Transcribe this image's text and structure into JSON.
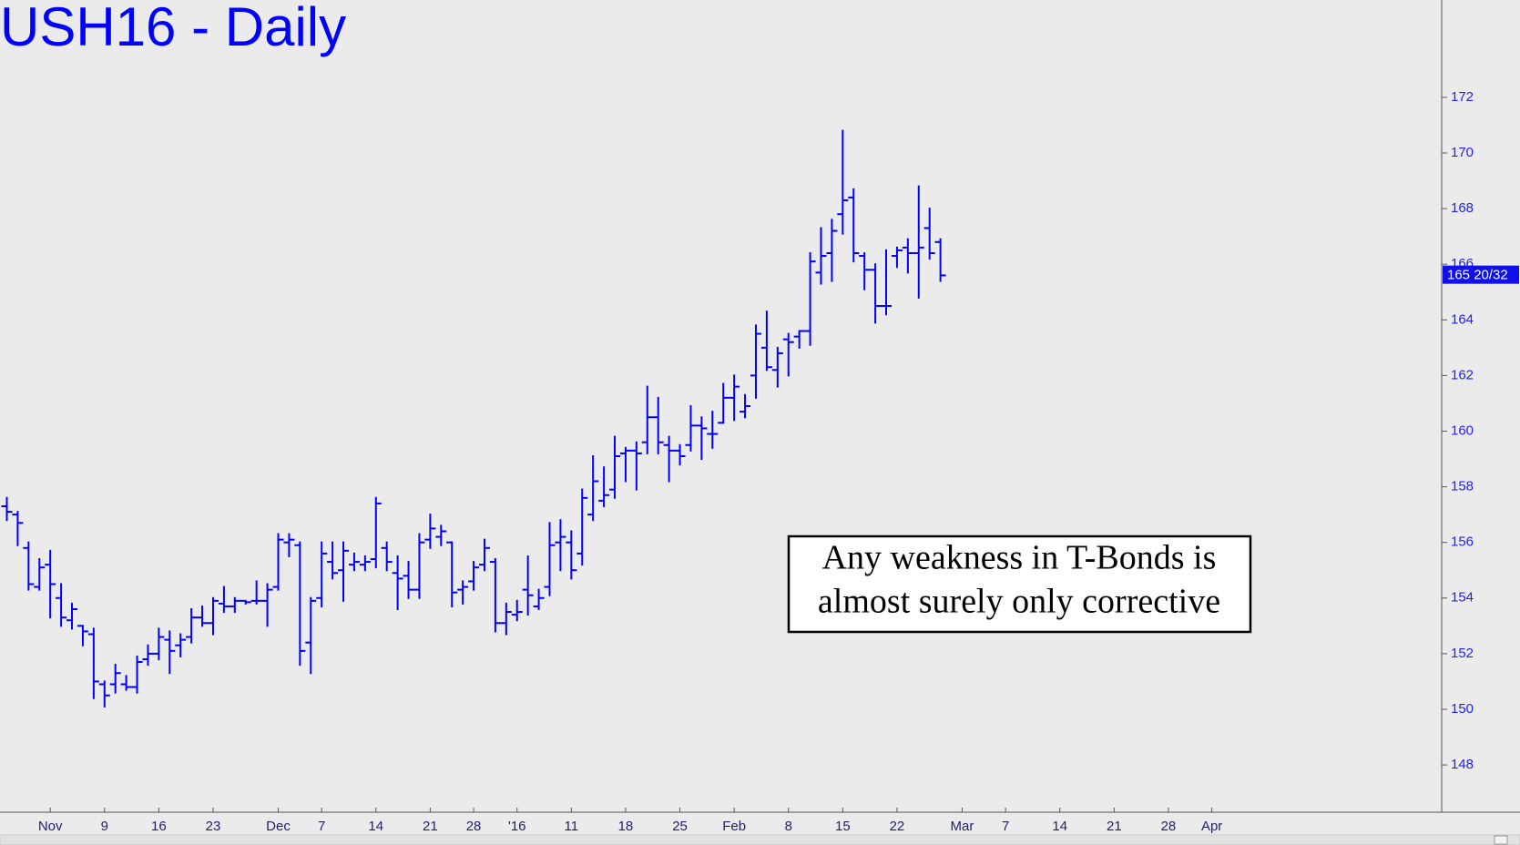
{
  "chart_data": {
    "type": "ohlc",
    "title": "USH16 - Daily",
    "color": "#0000ff",
    "categories": [
      null,
      null,
      null,
      null,
      "Nov",
      null,
      null,
      null,
      null,
      "9",
      null,
      null,
      null,
      null,
      "16",
      null,
      null,
      null,
      null,
      "23",
      null,
      null,
      null,
      null,
      null,
      "Dec",
      null,
      null,
      null,
      "7",
      null,
      null,
      null,
      null,
      "14",
      null,
      null,
      null,
      null,
      "21",
      null,
      null,
      null,
      "28",
      null,
      null,
      null,
      "'16",
      null,
      null,
      null,
      null,
      "11",
      null,
      null,
      null,
      null,
      "18",
      null,
      null,
      null,
      null,
      "25",
      null,
      null,
      null,
      null,
      "Feb",
      null,
      null,
      null,
      null,
      "8",
      null,
      null,
      null,
      null,
      "15",
      null,
      null,
      null,
      null,
      "22",
      null,
      null,
      null,
      null,
      null,
      "Mar",
      null,
      null,
      null,
      "7",
      null,
      null,
      null,
      null,
      "14",
      null,
      null,
      null,
      null,
      "21",
      null,
      null,
      null,
      null,
      "28",
      null,
      null,
      null,
      "Apr",
      null,
      null,
      null,
      null
    ],
    "open": [
      157.3,
      157.0,
      155.8,
      154.4,
      155.2,
      154.0,
      153.2,
      153.0,
      152.7,
      150.9,
      150.9,
      150.9,
      150.8,
      151.8,
      152.0,
      152.5,
      152.3,
      152.6,
      153.3,
      153.1,
      153.8,
      153.7,
      153.9,
      153.9,
      153.9,
      154.4,
      156.0,
      155.9,
      152.4,
      154.0,
      155.3,
      155.0,
      155.2,
      155.2,
      155.4,
      155.8,
      154.9,
      154.8,
      154.3,
      156.1,
      156.2,
      156.0,
      154.3,
      154.6,
      155.2,
      155.3,
      153.1,
      153.4,
      154.3,
      153.7,
      154.4,
      156.0,
      156.0,
      155.6,
      157.0,
      157.5,
      157.9,
      159.2,
      159.3,
      159.6,
      160.5,
      159.5,
      159.3,
      159.5,
      160.2,
      159.9,
      160.3,
      161.2,
      160.7,
      162.0,
      163.0,
      162.2,
      163.3,
      163.4,
      163.6,
      165.7,
      166.4,
      167.8,
      168.4,
      166.3,
      165.8,
      164.5,
      166.3,
      166.6,
      166.4,
      167.3,
      166.8,
      null,
      null,
      null,
      null,
      null,
      null,
      null,
      null,
      null,
      null,
      null,
      null,
      null,
      null,
      null,
      null,
      null,
      null,
      null,
      null,
      null,
      null,
      null,
      null,
      null,
      null,
      null,
      null,
      null
    ],
    "high": [
      157.6,
      157.1,
      156.0,
      155.4,
      155.7,
      154.5,
      153.8,
      153.0,
      152.9,
      151.0,
      151.6,
      151.2,
      151.9,
      152.3,
      152.9,
      152.8,
      152.7,
      153.6,
      153.7,
      154.0,
      154.4,
      154.0,
      153.9,
      154.6,
      154.5,
      156.3,
      156.3,
      156.0,
      154.0,
      156.0,
      156.0,
      156.0,
      155.6,
      155.5,
      157.6,
      156.0,
      155.5,
      155.3,
      156.3,
      157.0,
      156.6,
      156.0,
      154.6,
      155.3,
      156.1,
      155.4,
      153.8,
      153.9,
      155.5,
      154.3,
      156.7,
      156.8,
      156.4,
      157.9,
      159.1,
      158.7,
      159.8,
      159.4,
      159.6,
      161.6,
      161.2,
      159.8,
      159.5,
      160.9,
      160.5,
      160.7,
      161.7,
      162.0,
      161.3,
      163.8,
      164.3,
      163.0,
      163.5,
      163.6,
      166.4,
      167.3,
      167.6,
      170.8,
      168.7,
      166.4,
      166.0,
      166.5,
      166.6,
      166.9,
      168.8,
      168.0,
      166.9,
      null,
      null,
      null,
      null,
      null,
      null,
      null,
      null,
      null,
      null,
      null,
      null,
      null,
      null,
      null,
      null,
      null,
      null,
      null,
      null,
      null,
      null,
      null,
      null,
      null,
      null,
      null,
      null,
      null
    ],
    "low": [
      156.8,
      155.9,
      154.3,
      154.3,
      153.3,
      153.0,
      152.9,
      152.3,
      150.4,
      150.1,
      150.6,
      150.7,
      150.6,
      151.6,
      151.8,
      151.3,
      151.9,
      152.4,
      153.0,
      152.7,
      153.5,
      153.5,
      153.8,
      153.8,
      153.0,
      154.3,
      155.5,
      151.6,
      151.3,
      153.7,
      154.7,
      153.9,
      155.0,
      155.0,
      155.1,
      155.0,
      153.6,
      154.0,
      154.0,
      155.8,
      155.9,
      153.7,
      153.8,
      154.3,
      155.0,
      152.8,
      152.7,
      153.2,
      153.4,
      153.6,
      154.1,
      155.0,
      154.7,
      155.2,
      156.8,
      157.3,
      157.6,
      158.2,
      157.9,
      159.2,
      159.2,
      158.2,
      158.8,
      159.3,
      159.0,
      159.4,
      160.3,
      160.4,
      160.5,
      161.2,
      162.2,
      161.6,
      162.0,
      163.0,
      163.1,
      165.3,
      165.4,
      167.1,
      166.1,
      165.1,
      163.9,
      164.2,
      165.9,
      165.7,
      164.8,
      166.2,
      165.4,
      null,
      null,
      null,
      null,
      null,
      null,
      null,
      null,
      null,
      null,
      null,
      null,
      null,
      null,
      null,
      null,
      null,
      null,
      null,
      null,
      null,
      null,
      null,
      null,
      null,
      null,
      null,
      null,
      null
    ],
    "close": [
      157.1,
      156.7,
      154.5,
      155.1,
      154.5,
      153.3,
      153.6,
      152.8,
      151.0,
      150.5,
      151.3,
      150.8,
      151.7,
      152.0,
      152.6,
      152.1,
      152.5,
      153.3,
      153.1,
      153.9,
      153.7,
      153.9,
      153.85,
      153.9,
      154.3,
      156.1,
      156.1,
      152.1,
      153.9,
      155.6,
      154.9,
      155.7,
      155.3,
      155.3,
      157.4,
      155.3,
      154.7,
      154.3,
      156.0,
      156.5,
      156.4,
      154.2,
      154.4,
      155.1,
      155.8,
      153.1,
      153.5,
      153.5,
      154.1,
      154.0,
      155.9,
      156.2,
      155.0,
      157.6,
      158.2,
      157.7,
      159.1,
      159.3,
      159.2,
      160.5,
      159.6,
      159.3,
      159.1,
      160.2,
      160.1,
      159.9,
      161.2,
      161.6,
      160.9,
      163.5,
      162.3,
      162.8,
      163.2,
      163.6,
      166.1,
      166.3,
      167.2,
      168.3,
      166.4,
      165.8,
      164.5,
      164.5,
      166.5,
      166.4,
      166.6,
      166.4,
      165.6,
      null,
      null,
      null,
      null,
      null,
      null,
      null,
      null,
      null,
      null,
      null,
      null,
      null,
      null,
      null,
      null,
      null,
      null,
      null,
      null,
      null,
      null,
      null,
      null,
      null,
      null,
      null,
      null,
      null
    ],
    "ylim": [
      146.3,
      175.5
    ],
    "yticks": [
      148,
      150,
      152,
      154,
      156,
      158,
      160,
      162,
      164,
      166,
      168,
      170,
      172
    ],
    "last_price": {
      "value": 165.625,
      "label": "165 20/32"
    },
    "annotation": [
      "Any weakness in T-Bonds is",
      "almost surely only corrective"
    ]
  }
}
